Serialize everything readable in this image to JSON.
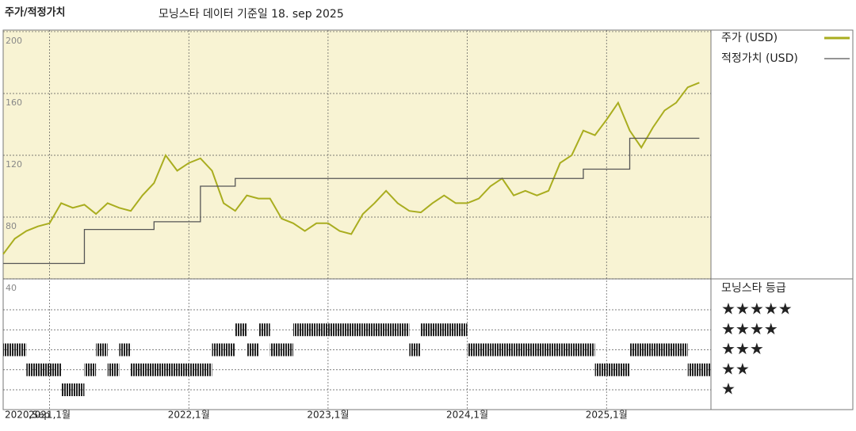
{
  "chart_data": {
    "type": "line",
    "title": "주가/적정가치",
    "subtitle": "모닝스타 데이터 기준일 18. sep 2025",
    "x": [
      "2020-09",
      "2020-10",
      "2020-11",
      "2020-12",
      "2021-01",
      "2021-02",
      "2021-03",
      "2021-04",
      "2021-05",
      "2021-06",
      "2021-07",
      "2021-08",
      "2021-09",
      "2021-10",
      "2021-11",
      "2021-12",
      "2022-01",
      "2022-02",
      "2022-03",
      "2022-04",
      "2022-05",
      "2022-06",
      "2022-07",
      "2022-08",
      "2022-09",
      "2022-10",
      "2022-11",
      "2022-12",
      "2023-01",
      "2023-02",
      "2023-03",
      "2023-04",
      "2023-05",
      "2023-06",
      "2023-07",
      "2023-08",
      "2023-09",
      "2023-10",
      "2023-11",
      "2023-12",
      "2024-01",
      "2024-02",
      "2024-03",
      "2024-04",
      "2024-05",
      "2024-06",
      "2024-07",
      "2024-08",
      "2024-09",
      "2024-10",
      "2024-11",
      "2024-12",
      "2025-01",
      "2025-02",
      "2025-03",
      "2025-04",
      "2025-05",
      "2025-06",
      "2025-07",
      "2025-08",
      "2025-09"
    ],
    "xlim": [
      "2020-09",
      "2025-10"
    ],
    "xticks": [
      {
        "value": "2020-09",
        "label": "2020,Sep"
      },
      {
        "value": "2021-01",
        "label": "2021,1월"
      },
      {
        "value": "2022-01",
        "label": "2022,1월"
      },
      {
        "value": "2023-01",
        "label": "2023,1월"
      },
      {
        "value": "2024-01",
        "label": "2024,1월"
      },
      {
        "value": "2025-01",
        "label": "2025,1월"
      }
    ],
    "ylim": [
      40,
      201
    ],
    "yticks": [
      40,
      80,
      120,
      160,
      200
    ],
    "series": [
      {
        "name": "주가 (USD)",
        "color": "#a9ad1f",
        "values": [
          56,
          66,
          71,
          74,
          76,
          89,
          86,
          88,
          82,
          89,
          86,
          84,
          94,
          102,
          120,
          110,
          115,
          118,
          110,
          89,
          84,
          94,
          92,
          92,
          79,
          76,
          71,
          76,
          76,
          71,
          69,
          82,
          89,
          97,
          89,
          84,
          83,
          89,
          94,
          89,
          89,
          92,
          100,
          105,
          94,
          97,
          94,
          97,
          115,
          120,
          136,
          133,
          143,
          154,
          136,
          125,
          138,
          149,
          154,
          164,
          167
        ]
      },
      {
        "name": "적정가치 (USD)",
        "color": "#555555",
        "values": [
          50,
          50,
          50,
          50,
          50,
          50,
          50,
          72,
          72,
          72,
          72,
          72,
          72,
          77,
          77,
          77,
          77,
          100,
          100,
          100,
          105,
          105,
          105,
          105,
          105,
          105,
          105,
          105,
          105,
          105,
          105,
          105,
          105,
          105,
          105,
          105,
          105,
          105,
          105,
          105,
          105,
          105,
          105,
          105,
          105,
          105,
          105,
          105,
          105,
          105,
          111,
          111,
          111,
          111,
          131,
          131,
          131,
          131,
          131,
          131,
          131
        ]
      }
    ],
    "rating": {
      "title": "모닝스타 등급",
      "levels": [
        {
          "value": 5,
          "label": "★★★★★"
        },
        {
          "value": 4,
          "label": "★★★★"
        },
        {
          "value": 3,
          "label": "★★★"
        },
        {
          "value": 2,
          "label": "★★"
        },
        {
          "value": 1,
          "label": "★"
        }
      ],
      "values": [
        3,
        3,
        2,
        2,
        2,
        1,
        1,
        2,
        3,
        2,
        3,
        2,
        2,
        2,
        2,
        2,
        2,
        2,
        3,
        3,
        4,
        3,
        4,
        3,
        3,
        4,
        4,
        4,
        4,
        4,
        4,
        4,
        4,
        4,
        4,
        3,
        4,
        4,
        4,
        4,
        3,
        3,
        3,
        3,
        3,
        3,
        3,
        3,
        3,
        3,
        3,
        2,
        2,
        2,
        3,
        3,
        3,
        3,
        3,
        2,
        2
      ]
    }
  }
}
